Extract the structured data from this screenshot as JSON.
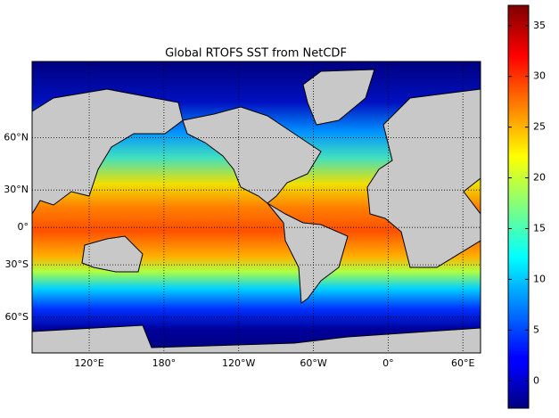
{
  "chart_data": {
    "type": "map",
    "title": "Global RTOFS SST from NetCDF",
    "projection": "mercator",
    "xlim": [
      74.16,
      434.16
    ],
    "ylim": [
      -72,
      80
    ],
    "xticks": [
      {
        "value": 120,
        "label": "120°E"
      },
      {
        "value": 180,
        "label": "180°"
      },
      {
        "value": 240,
        "label": "120°W"
      },
      {
        "value": 300,
        "label": "60°W"
      },
      {
        "value": 360,
        "label": "0°"
      },
      {
        "value": 420,
        "label": "60°E"
      }
    ],
    "yticks": [
      {
        "value": 60,
        "label": "60°N"
      },
      {
        "value": 30,
        "label": "30°N"
      },
      {
        "value": 0,
        "label": "0°"
      },
      {
        "value": -30,
        "label": "30°S"
      },
      {
        "value": -60,
        "label": "60°S"
      }
    ],
    "grid": true,
    "colorbar": {
      "colormap": "jet",
      "lim": [
        -2.7,
        37
      ],
      "ticks": [
        0,
        5,
        10,
        15,
        20,
        25,
        30,
        35
      ]
    }
  }
}
